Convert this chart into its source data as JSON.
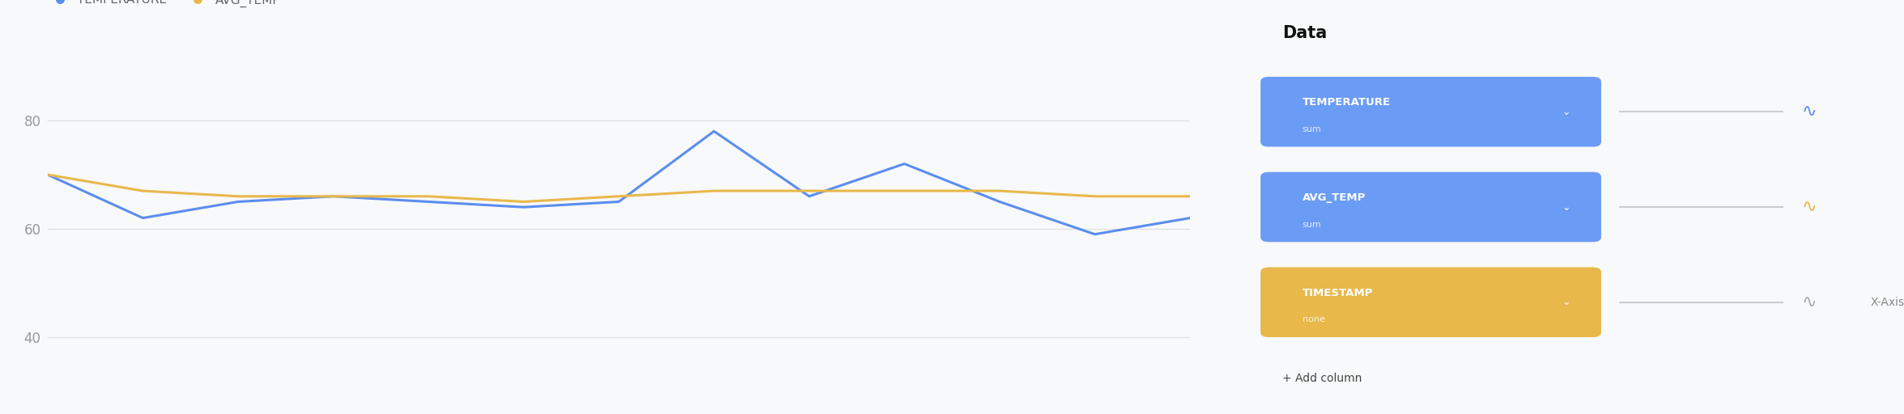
{
  "temperature": [
    70,
    62,
    65,
    66,
    65,
    64,
    65,
    78,
    66,
    72,
    65,
    59,
    62
  ],
  "avg_temp": [
    70,
    67,
    66,
    66,
    66,
    65,
    66,
    67,
    67,
    67,
    67,
    66,
    66
  ],
  "x": [
    0,
    1,
    2,
    3,
    4,
    5,
    6,
    7,
    8,
    9,
    10,
    11,
    12
  ],
  "ylim": [
    35,
    90
  ],
  "yticks": [
    40,
    60,
    80
  ],
  "temp_color": "#5B8DEF",
  "avg_color": "#E8B84B",
  "bg_color": "#F8F9FA",
  "grid_color": "#E0E0E0",
  "legend_labels": [
    "TEMPERATURE",
    "AVG_TEMP"
  ],
  "right_panel_bg": "#F0F2F5",
  "line_width": 2.2,
  "panel_title": "Data",
  "field1_label": "TEMPERATURE",
  "field1_sub": "sum",
  "field1_card_color": "#6B9CF5",
  "field2_label": "AVG_TEMP",
  "field2_sub": "sum",
  "field2_card_color": "#6B9CF5",
  "field3_label": "TIMESTAMP",
  "field3_sub": "none",
  "field3_card_color": "#E8B84B",
  "xaxis_label": "X-Axis",
  "add_column": "+ Add column"
}
